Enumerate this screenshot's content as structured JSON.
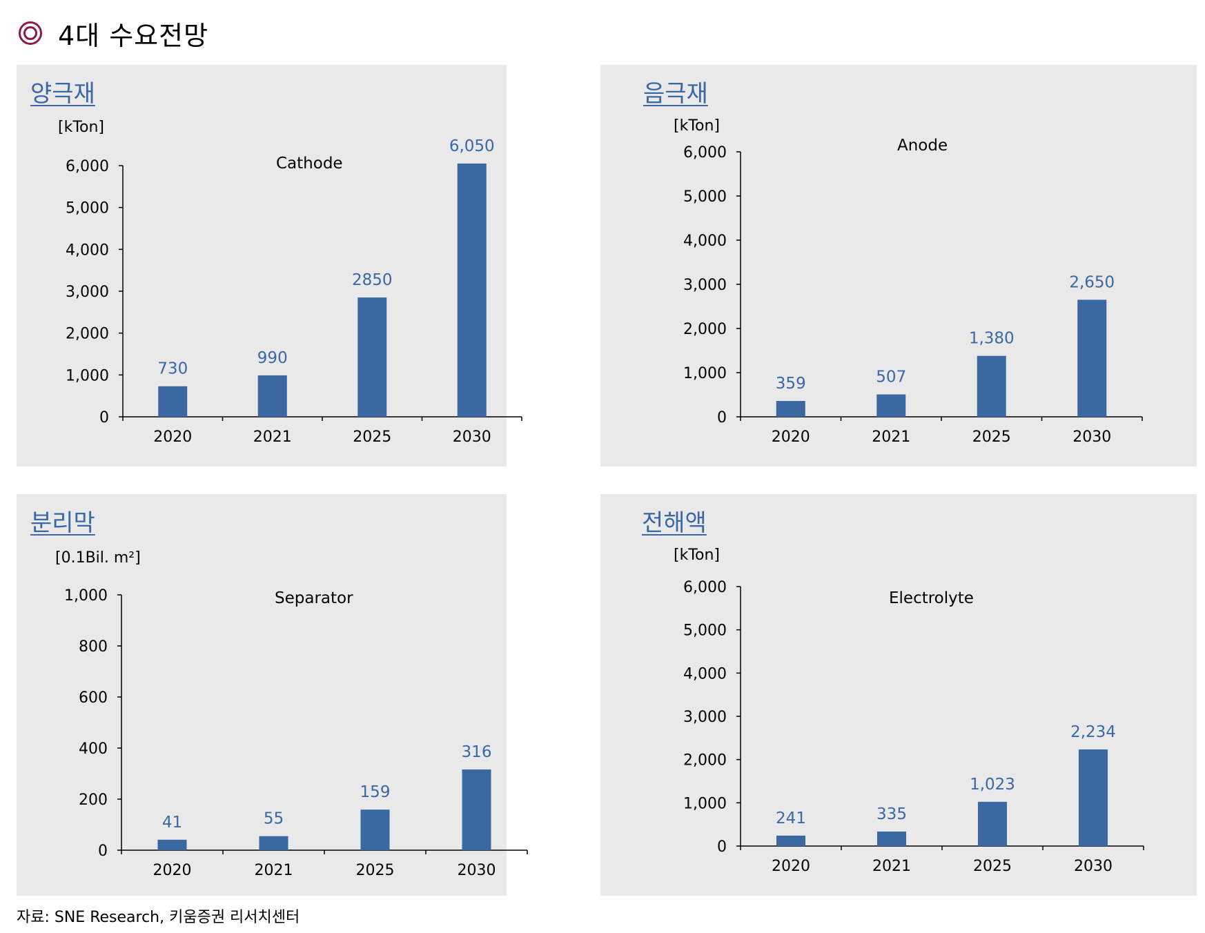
{
  "header": {
    "icon": "double-circle-icon",
    "icon_color": "#8b1a4a",
    "title": "4대 수요전망"
  },
  "colors": {
    "bar": "#3b68a0",
    "value_label": "#3a68a4",
    "title": "#3a68a4",
    "panel_bg": "#e9e9ea"
  },
  "panels": [
    {
      "title": "양극재",
      "unit": "[kTon]",
      "chart_name": "Cathode"
    },
    {
      "title": "음극재",
      "unit": "[kTon]",
      "chart_name": "Anode"
    },
    {
      "title": "분리막",
      "unit": "[0.1Bil. m²]",
      "chart_name": "Separator"
    },
    {
      "title": "전해액",
      "unit": "[kTon]",
      "chart_name": "Electrolyte"
    }
  ],
  "chart_data": [
    {
      "type": "bar",
      "title": "Cathode",
      "ylabel": "[kTon]",
      "categories": [
        "2020",
        "2021",
        "2025",
        "2030"
      ],
      "values": [
        730,
        990,
        2850,
        6050
      ],
      "value_labels": [
        "730",
        "990",
        "2850",
        "6,050"
      ],
      "ylim": [
        0,
        6000
      ],
      "yticks": [
        "0",
        "1,000",
        "2,000",
        "3,000",
        "4,000",
        "5,000",
        "6,000"
      ],
      "grid": false,
      "legend": "none"
    },
    {
      "type": "bar",
      "title": "Anode",
      "ylabel": "[kTon]",
      "categories": [
        "2020",
        "2021",
        "2025",
        "2030"
      ],
      "values": [
        359,
        507,
        1380,
        2650
      ],
      "value_labels": [
        "359",
        "507",
        "1,380",
        "2,650"
      ],
      "ylim": [
        0,
        6000
      ],
      "yticks": [
        "0",
        "1,000",
        "2,000",
        "3,000",
        "4,000",
        "5,000",
        "6,000"
      ],
      "grid": false,
      "legend": "none"
    },
    {
      "type": "bar",
      "title": "Separator",
      "ylabel": "[0.1Bil. m²]",
      "categories": [
        "2020",
        "2021",
        "2025",
        "2030"
      ],
      "values": [
        41,
        55,
        159,
        316
      ],
      "value_labels": [
        "41",
        "55",
        "159",
        "316"
      ],
      "ylim": [
        0,
        1000
      ],
      "yticks": [
        "0",
        "200",
        "400",
        "600",
        "800",
        "1,000"
      ],
      "grid": false,
      "legend": "none"
    },
    {
      "type": "bar",
      "title": "Electrolyte",
      "ylabel": "[kTon]",
      "categories": [
        "2020",
        "2021",
        "2025",
        "2030"
      ],
      "values": [
        241,
        335,
        1023,
        2234
      ],
      "value_labels": [
        "241",
        "335",
        "1,023",
        "2,234"
      ],
      "ylim": [
        0,
        6000
      ],
      "yticks": [
        "0",
        "1,000",
        "2,000",
        "3,000",
        "4,000",
        "5,000",
        "6,000"
      ],
      "grid": false,
      "legend": "none"
    }
  ],
  "footer": {
    "source": "자료: SNE Research, 키움증권 리서치센터"
  }
}
